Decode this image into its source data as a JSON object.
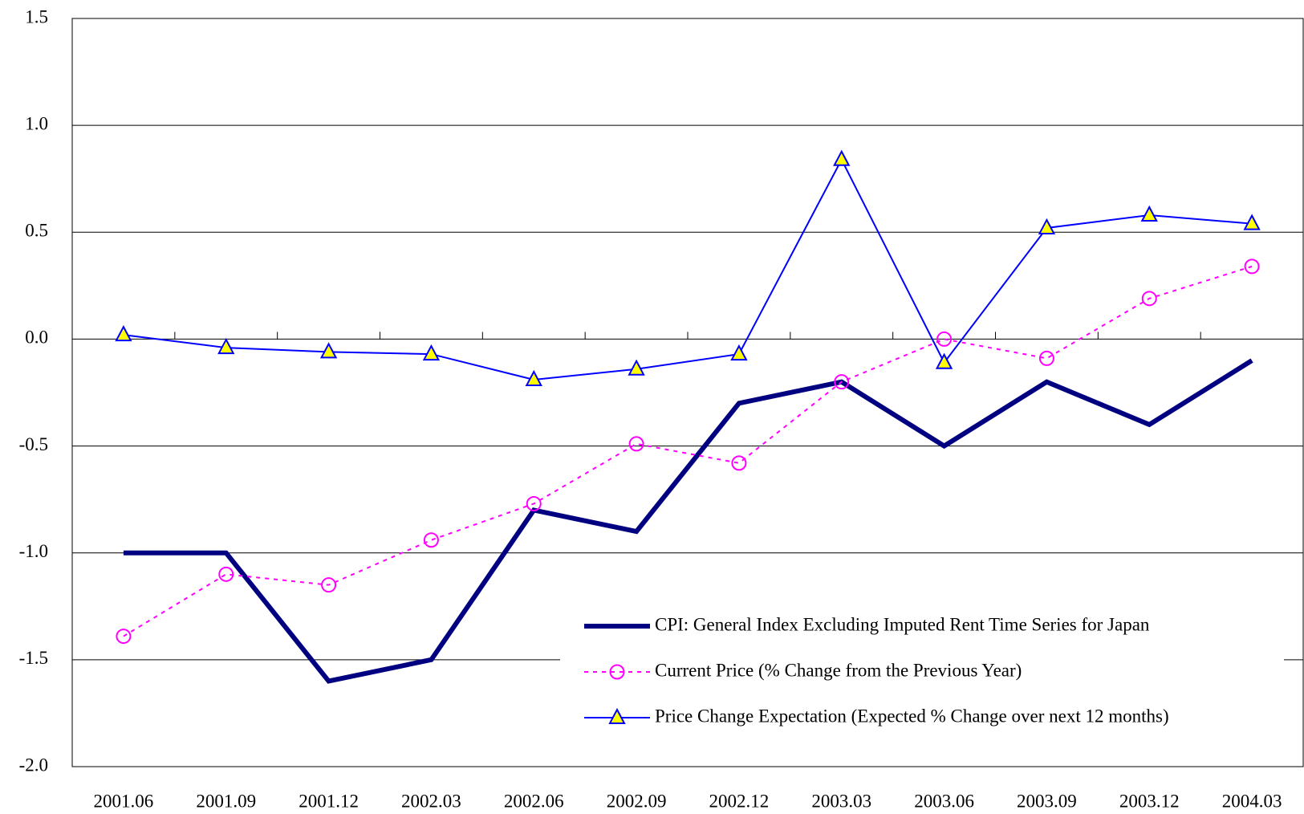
{
  "chart_data": {
    "type": "line",
    "categories": [
      "2001.06",
      "2001.09",
      "2001.12",
      "2002.03",
      "2002.06",
      "2002.09",
      "2002.12",
      "2003.03",
      "2003.06",
      "2003.09",
      "2003.12",
      "2004.03"
    ],
    "series": [
      {
        "name": "CPI: General Index Excluding Imputed Rent Time Series for Japan",
        "color": "#000080",
        "values": [
          -1.0,
          -1.0,
          -1.6,
          -1.5,
          -0.8,
          -0.9,
          -0.3,
          -0.2,
          -0.5,
          -0.2,
          -0.4,
          -0.1
        ]
      },
      {
        "name": "Current Price (% Change from the Previous Year)",
        "color": "#ff00ff",
        "values": [
          -1.39,
          -1.1,
          -1.15,
          -0.94,
          -0.77,
          -0.49,
          -0.58,
          -0.2,
          0.0,
          -0.09,
          0.19,
          0.34
        ]
      },
      {
        "name": "Price Change Expectation (Expected % Change over next 12 months)",
        "color": "#0000ff",
        "values": [
          0.02,
          -0.04,
          -0.06,
          -0.07,
          -0.19,
          -0.14,
          -0.07,
          0.84,
          -0.11,
          0.52,
          0.58,
          0.54
        ]
      }
    ],
    "ylim": [
      -2.0,
      1.5
    ],
    "yticks": [
      {
        "value": -2.0,
        "label": "-2.0"
      },
      -1.5,
      {
        "value": -1.0,
        "label": "-1.0"
      },
      -0.5,
      {
        "value": 0.0,
        "label": "0.0"
      },
      0.5,
      {
        "value": 1.0,
        "label": "1.0"
      },
      1.5
    ],
    "grid": true,
    "legend": "lower right"
  }
}
